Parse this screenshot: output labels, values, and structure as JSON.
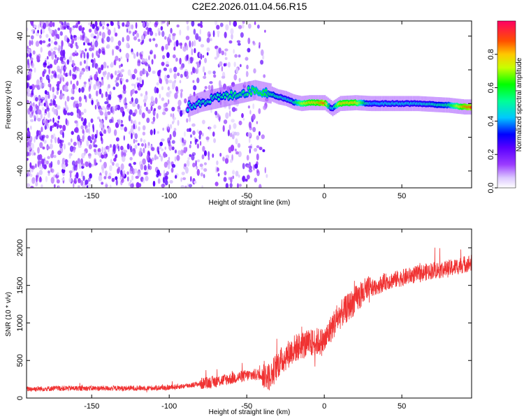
{
  "title": "C2E2.2026.011.04.56.R15",
  "chart_data": [
    {
      "type": "heatmap",
      "panel": "top",
      "xlabel": "Height of straight line (km)",
      "ylabel": "Frequency (Hz)",
      "xlim": [
        -192,
        95
      ],
      "ylim": [
        -50,
        49
      ],
      "xticks": [
        -150,
        -100,
        -50,
        0,
        50
      ],
      "yticks": [
        -40,
        -20,
        0,
        20,
        40
      ],
      "colorbar": {
        "label": "Normalized spectral amplitude",
        "range": [
          0.0,
          1.0
        ],
        "ticks": [
          0.0,
          0.2,
          0.4,
          0.6,
          0.8
        ],
        "tick_labels": [
          "0.0",
          "0.2",
          "0.4",
          "0.6",
          "0.8"
        ]
      },
      "ridge": {
        "description_points_x": [
          -88,
          -80,
          -70,
          -60,
          -50,
          -45,
          -40,
          -35,
          -30,
          -25,
          -20,
          -15,
          -10,
          -5,
          0,
          5,
          10,
          20,
          30,
          40,
          50,
          60,
          70,
          80,
          90,
          95
        ],
        "frequency_y": [
          -2,
          1,
          3,
          5,
          7,
          8,
          7,
          6,
          4,
          3,
          1,
          0,
          0.5,
          0.5,
          0.5,
          -3,
          0,
          0.5,
          0,
          0,
          0,
          0,
          -0.5,
          -1,
          -2,
          -2
        ],
        "amplitude": [
          0.45,
          0.5,
          0.5,
          0.55,
          0.55,
          0.6,
          0.6,
          0.55,
          0.5,
          0.45,
          0.5,
          0.7,
          0.8,
          0.8,
          0.9,
          0.4,
          0.8,
          0.8,
          0.4,
          0.45,
          0.45,
          0.45,
          0.5,
          0.55,
          0.85,
          0.9
        ]
      },
      "noise_region_x": [
        -192,
        -37
      ]
    },
    {
      "type": "line",
      "panel": "bottom",
      "xlabel": "Height of straight line (km)",
      "ylabel": "SNR (10 * v/v)",
      "xlim": [
        -192,
        95
      ],
      "ylim": [
        0,
        2250
      ],
      "xticks": [
        -150,
        -100,
        -50,
        0,
        50
      ],
      "yticks": [
        0,
        500,
        1000,
        1500,
        2000
      ],
      "color": "#f03232",
      "series": [
        {
          "name": "SNR",
          "x": [
            -192,
            -170,
            -150,
            -130,
            -110,
            -100,
            -90,
            -80,
            -70,
            -60,
            -50,
            -40,
            -35,
            -30,
            -25,
            -20,
            -15,
            -10,
            -5,
            0,
            5,
            10,
            15,
            20,
            25,
            30,
            40,
            50,
            60,
            70,
            80,
            90,
            95
          ],
          "values": [
            120,
            130,
            130,
            130,
            135,
            140,
            160,
            190,
            220,
            260,
            300,
            320,
            280,
            450,
            550,
            650,
            700,
            720,
            750,
            750,
            950,
            1100,
            1200,
            1300,
            1400,
            1450,
            1550,
            1600,
            1650,
            1700,
            1720,
            1780,
            1800
          ]
        }
      ]
    }
  ]
}
